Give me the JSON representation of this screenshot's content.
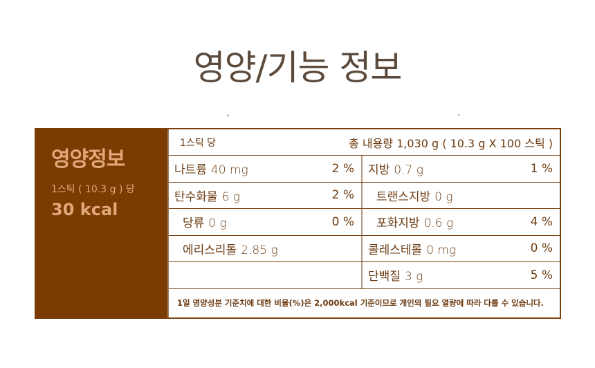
{
  "title": "영양/기능 정보",
  "marks": [
    ",",
    "."
  ],
  "panel": {
    "heading": "영양정보",
    "serving": "1스틱 ( 10.3 g ) 당",
    "kcal": "30 kcal"
  },
  "header": {
    "per": "1스틱 당",
    "total": "총 내용량 1,030 g ( 10.3 g X 100 스틱 )"
  },
  "rows": [
    [
      {
        "name": "나트륨",
        "value": "40 mg",
        "pct": "2 %"
      },
      {
        "name": "지방",
        "value": "0.7 g",
        "pct": "1 %"
      }
    ],
    [
      {
        "name": "탄수화물",
        "value": "6 g",
        "pct": "2 %"
      },
      {
        "name": "트랜스지방",
        "value": "0 g",
        "pct": ""
      }
    ],
    [
      {
        "name": "당류",
        "value": "0 g",
        "pct": "0 %"
      },
      {
        "name": "포화지방",
        "value": "0.6 g",
        "pct": "4 %"
      }
    ],
    [
      {
        "name": "에리스리톨",
        "value": "2.85 g",
        "pct": ""
      },
      {
        "name": "콜레스테롤",
        "value": "0 mg",
        "pct": "0 %"
      }
    ],
    [
      {
        "name": "",
        "value": "",
        "pct": ""
      },
      {
        "name": "단백질",
        "value": "3 g",
        "pct": "5 %"
      }
    ]
  ],
  "footnote": "1일 영양성분 기준치에 대한 비율(%)은 2,000kcal 기준이므로 개인의 필요 열량에 따라 다를 수 있습니다.",
  "colors": {
    "panel_bg": "#7a3c00",
    "panel_text": "#e2a77a",
    "text": "#6b3a10",
    "title": "#5b4a3c"
  }
}
